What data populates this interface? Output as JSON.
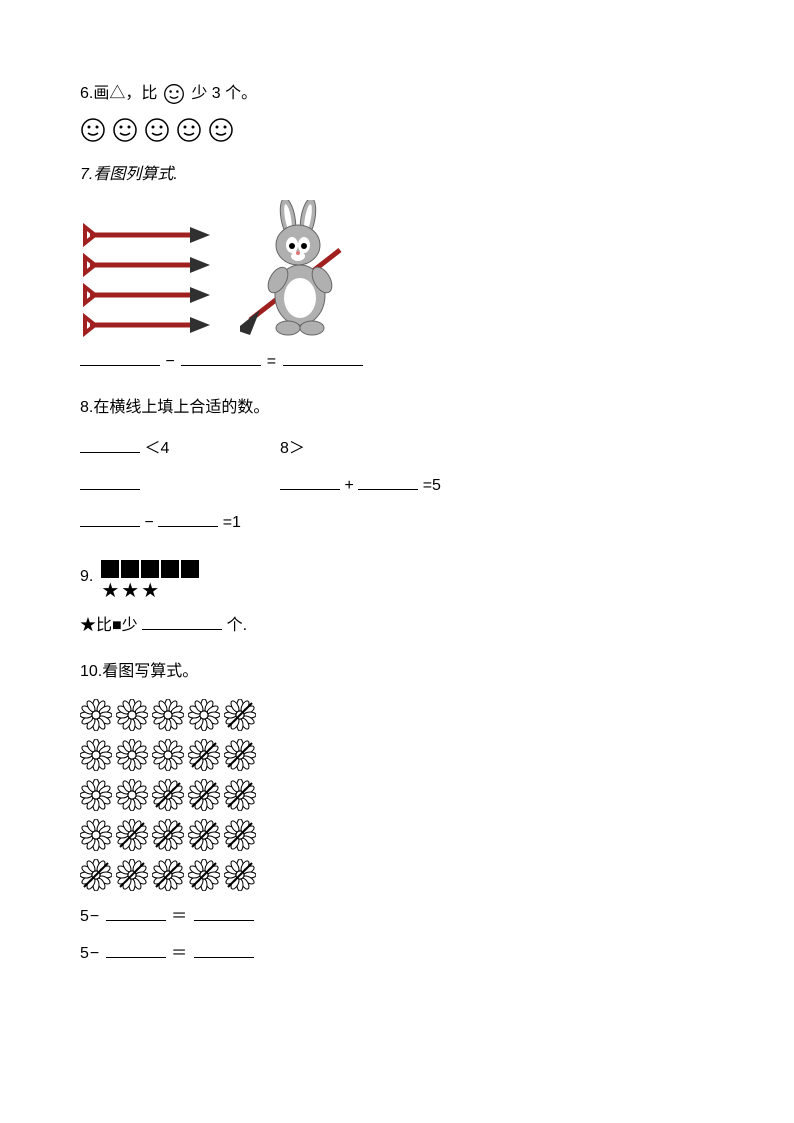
{
  "q6": {
    "prefix": "6.画△，比",
    "suffix": "少 3 个。",
    "smiley_count": 5,
    "smiley_color": "#000000"
  },
  "q7": {
    "title": "7.看图列算式.",
    "shovel_count": 4,
    "shovel_handle_color": "#a02020",
    "shovel_blade_color": "#303030",
    "bunny_body_color": "#b0b0b0",
    "bunny_belly_color": "#ffffff",
    "minus": "−",
    "equals": "="
  },
  "q8": {
    "title": "8.在横线上填上合适的数。",
    "row1_lt": "＜4",
    "row1_gt": "8＞",
    "row2_eq": "=5",
    "row2_plus": "+",
    "row3_minus": "−",
    "row3_eq": "=1"
  },
  "q9": {
    "number": "9.",
    "squares_count": 5,
    "stars_count": 3,
    "text_before": "★比■少",
    "text_after": "个."
  },
  "q10": {
    "title": "10.看图写算式。",
    "flower_cross_pattern": [
      [
        0,
        0,
        0,
        0,
        1
      ],
      [
        0,
        0,
        0,
        1,
        1
      ],
      [
        0,
        0,
        1,
        1,
        1
      ],
      [
        0,
        1,
        1,
        1,
        1
      ],
      [
        1,
        1,
        1,
        1,
        1
      ]
    ],
    "flower_stroke": "#000000",
    "flower_fill": "#ffffff",
    "eq_prefix": "5−",
    "eq_mid": "＝"
  }
}
